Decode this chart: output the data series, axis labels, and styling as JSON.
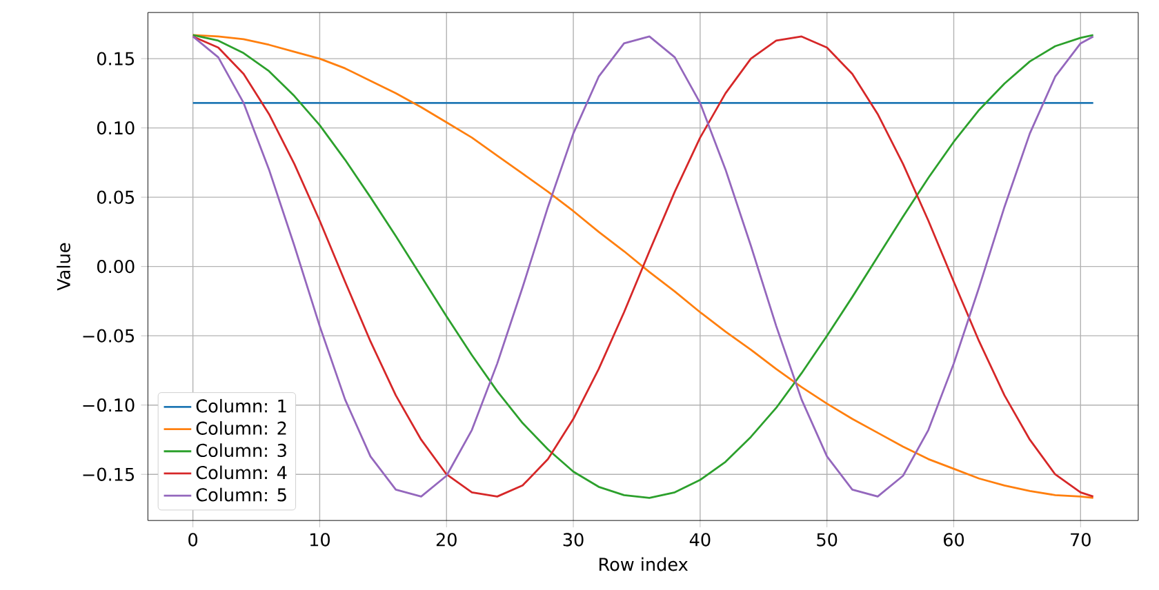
{
  "chart_data": {
    "type": "line",
    "xlabel": "Row index",
    "ylabel": "Value",
    "x": [
      0,
      2,
      4,
      6,
      8,
      10,
      12,
      14,
      16,
      18,
      20,
      22,
      24,
      26,
      28,
      30,
      32,
      34,
      36,
      38,
      40,
      42,
      44,
      46,
      48,
      50,
      52,
      54,
      56,
      58,
      60,
      62,
      64,
      66,
      68,
      70,
      71
    ],
    "series": [
      {
        "name": "Column: 1",
        "color": "#1f77b4",
        "values": [
          0.118,
          0.118,
          0.118,
          0.118,
          0.118,
          0.118,
          0.118,
          0.118,
          0.118,
          0.118,
          0.118,
          0.118,
          0.118,
          0.118,
          0.118,
          0.118,
          0.118,
          0.118,
          0.118,
          0.118,
          0.118,
          0.118,
          0.118,
          0.118,
          0.118,
          0.118,
          0.118,
          0.118,
          0.118,
          0.118,
          0.118,
          0.118,
          0.118,
          0.118,
          0.118,
          0.118,
          0.118
        ]
      },
      {
        "name": "Column: 2",
        "color": "#ff7f0e",
        "values": [
          0.167,
          0.166,
          0.164,
          0.16,
          0.155,
          0.15,
          0.143,
          0.134,
          0.125,
          0.115,
          0.104,
          0.093,
          0.08,
          0.067,
          0.054,
          0.04,
          0.025,
          0.011,
          -0.004,
          -0.018,
          -0.033,
          -0.047,
          -0.06,
          -0.074,
          -0.087,
          -0.099,
          -0.11,
          -0.12,
          -0.13,
          -0.139,
          -0.146,
          -0.153,
          -0.158,
          -0.162,
          -0.165,
          -0.166,
          -0.167
        ]
      },
      {
        "name": "Column: 3",
        "color": "#2ca02c",
        "values": [
          0.167,
          0.163,
          0.154,
          0.141,
          0.123,
          0.102,
          0.077,
          0.05,
          0.022,
          -0.007,
          -0.036,
          -0.064,
          -0.09,
          -0.113,
          -0.132,
          -0.148,
          -0.159,
          -0.165,
          -0.167,
          -0.163,
          -0.154,
          -0.141,
          -0.123,
          -0.102,
          -0.077,
          -0.05,
          -0.022,
          0.007,
          0.036,
          0.064,
          0.09,
          0.113,
          0.132,
          0.148,
          0.159,
          0.165,
          0.167
        ]
      },
      {
        "name": "Column: 4",
        "color": "#d62728",
        "values": [
          0.166,
          0.158,
          0.139,
          0.11,
          0.074,
          0.033,
          -0.011,
          -0.054,
          -0.093,
          -0.125,
          -0.15,
          -0.163,
          -0.166,
          -0.158,
          -0.139,
          -0.11,
          -0.074,
          -0.033,
          0.011,
          0.054,
          0.093,
          0.125,
          0.15,
          0.163,
          0.166,
          0.158,
          0.139,
          0.11,
          0.074,
          0.033,
          -0.011,
          -0.054,
          -0.093,
          -0.125,
          -0.15,
          -0.163,
          -0.166
        ]
      },
      {
        "name": "Column: 5",
        "color": "#9467bd",
        "values": [
          0.166,
          0.151,
          0.118,
          0.07,
          0.015,
          -0.043,
          -0.096,
          -0.137,
          -0.161,
          -0.166,
          -0.151,
          -0.118,
          -0.07,
          -0.015,
          0.043,
          0.096,
          0.137,
          0.161,
          0.166,
          0.151,
          0.118,
          0.07,
          0.015,
          -0.043,
          -0.096,
          -0.137,
          -0.161,
          -0.166,
          -0.151,
          -0.118,
          -0.07,
          -0.015,
          0.043,
          0.096,
          0.137,
          0.161,
          0.166
        ]
      }
    ],
    "xlim": [
      -3.55,
      74.55
    ],
    "ylim": [
      -0.1833,
      0.1833
    ],
    "xticks": [
      0,
      10,
      20,
      30,
      40,
      50,
      60,
      70
    ],
    "yticks": [
      {
        "value": -0.15,
        "label": "−0.15"
      },
      {
        "value": -0.1,
        "label": "−0.10"
      },
      {
        "value": -0.05,
        "label": "−0.05"
      },
      {
        "value": 0,
        "label": "0.00"
      },
      {
        "value": 0.05,
        "label": "0.05"
      },
      {
        "value": 0.1,
        "label": "0.10"
      },
      {
        "value": 0.15,
        "label": "0.15"
      }
    ],
    "grid": true,
    "legend": "bottom left"
  }
}
